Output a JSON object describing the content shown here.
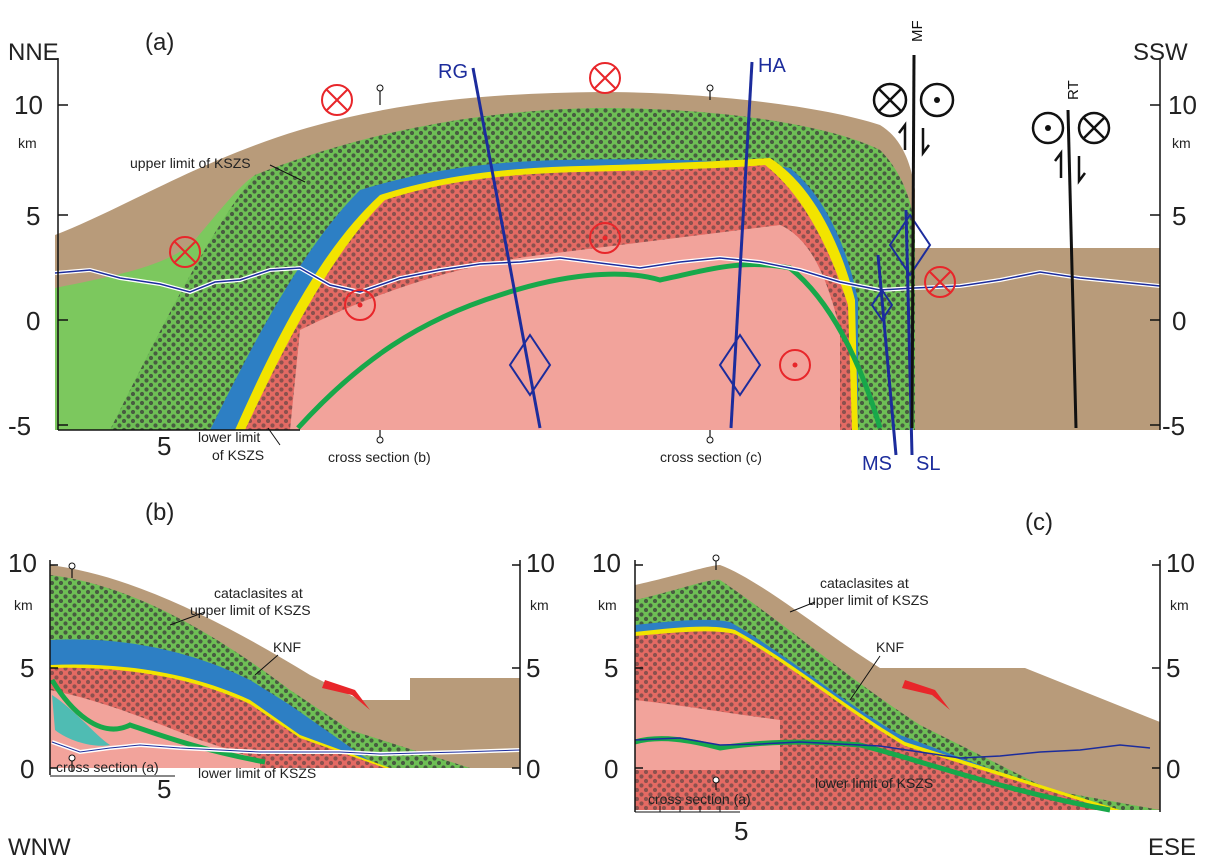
{
  "panel_a": {
    "label": "(a)",
    "left_dir": "NNE",
    "right_dir": "SSW",
    "y_ticks_left": [
      "10",
      "5",
      "0",
      "-5"
    ],
    "y_ticks_right": [
      "10",
      "5",
      "0",
      "-5"
    ],
    "unit_left": "km",
    "unit_right": "km",
    "x_tick": "5",
    "upper_limit": "upper limit of KSZS",
    "lower_limit_1": "lower limit",
    "lower_limit_2": "of KSZS",
    "cross_b": "cross section (b)",
    "cross_c": "cross section (c)",
    "faults": {
      "rg": "RG",
      "ha": "HA",
      "mf": "MF",
      "rt": "RT",
      "ms": "MS",
      "sl": "SL"
    }
  },
  "panel_b": {
    "label": "(b)",
    "y_ticks_left": [
      "10",
      "5",
      "0"
    ],
    "y_ticks_right": [
      "10",
      "5",
      "0"
    ],
    "unit_left": "km",
    "unit_right": "km",
    "x_tick": "5",
    "cataclasites_1": "cataclasites at",
    "cataclasites_2": "upper limit of KSZS",
    "knf": "KNF",
    "lower_limit": "lower limit of KSZS",
    "cross_a": "cross section (a)",
    "dir": "WNW"
  },
  "panel_c": {
    "label": "(c)",
    "y_ticks_left": [
      "10",
      "5",
      "0"
    ],
    "y_ticks_right": [
      "10",
      "5",
      "0"
    ],
    "unit_left": "km",
    "unit_right": "km",
    "x_tick": "5",
    "cataclasites_1": "cataclasites at",
    "cataclasites_2": "upper limit of KSZS",
    "knf": "KNF",
    "lower_limit": "lower limit of KSZS",
    "cross_a": "cross section (a)",
    "dir": "ESE"
  },
  "colors": {
    "topsoil": "#b89b7a",
    "green": "#6ebf55",
    "green_light": "#8fd06a",
    "blue": "#2d7fc4",
    "teal": "#4fbcb3",
    "red": "#e46a63",
    "pink": "#f2a39b",
    "yellow": "#f2e400",
    "fault_blue": "#1c2c9c",
    "marker_red": "#e8262a"
  }
}
